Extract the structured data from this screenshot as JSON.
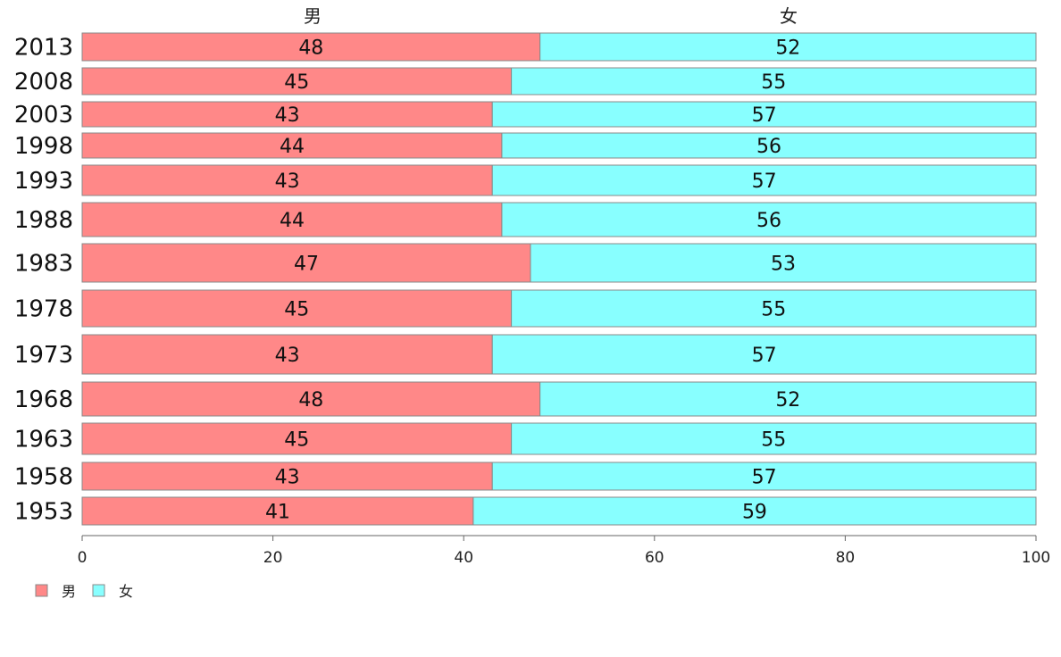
{
  "chart_data": {
    "type": "bar",
    "orientation": "horizontal",
    "stacked": true,
    "categories": [
      "2013",
      "2008",
      "2003",
      "1998",
      "1993",
      "1988",
      "1983",
      "1978",
      "1973",
      "1968",
      "1963",
      "1958",
      "1953"
    ],
    "series": [
      {
        "name": "男",
        "values": [
          48,
          45,
          43,
          44,
          43,
          44,
          47,
          45,
          43,
          48,
          45,
          43,
          41
        ],
        "color": "#ff8888"
      },
      {
        "name": "女",
        "values": [
          52,
          55,
          57,
          56,
          57,
          56,
          53,
          55,
          57,
          52,
          55,
          57,
          59
        ],
        "color": "#88ffff"
      }
    ],
    "xlim": [
      0,
      100
    ],
    "xticks": [
      "0",
      "20",
      "40",
      "60",
      "80",
      "100"
    ],
    "grid": false,
    "legend_position": "bottom-left"
  }
}
